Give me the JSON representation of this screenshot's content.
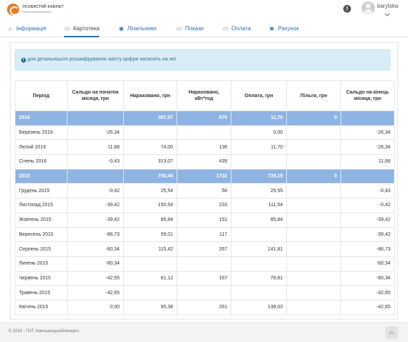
{
  "header": {
    "logo_title": "ОСОБИСТИЙ КАБІНЕТ",
    "logo_subtitle": "хмельницькобленерго",
    "username": "barytska"
  },
  "nav": {
    "tabs": [
      {
        "label": "Інформація",
        "icon": "home-icon",
        "glyph": "⌂"
      },
      {
        "label": "Картотека",
        "icon": "card-icon",
        "glyph": "▭"
      },
      {
        "label": "Лічильники",
        "icon": "meter-icon",
        "glyph": "◉"
      },
      {
        "label": "Покази",
        "icon": "readings-icon",
        "glyph": "▭"
      },
      {
        "label": "Оплата",
        "icon": "payment-icon",
        "glyph": "▭"
      },
      {
        "label": "Рахунок",
        "icon": "invoice-icon",
        "glyph": "◙"
      }
    ],
    "active_tab": "Картотека"
  },
  "alert": {
    "text": "для детальнішого розшифрування змісту цифри натисніть на неї"
  },
  "table": {
    "columns": [
      "Період",
      "Сальдо на початок місяця, грн",
      "Нараховано, грн",
      "Нараховано, кВт*год",
      "Оплата, грн",
      "Пільги, грн",
      "Сальдо на кінець місяця, грн"
    ],
    "rows": [
      {
        "type": "year",
        "cells": [
          "2016",
          "",
          "387,07",
          "575",
          "11,70",
          "0",
          ""
        ]
      },
      {
        "type": "month",
        "cells": [
          "Березень 2016",
          "-26,34",
          "",
          "",
          "0,00",
          "",
          "-26,34"
        ]
      },
      {
        "type": "month",
        "cells": [
          "Лютий 2016",
          "11,68",
          "74,00",
          "136",
          "11,70",
          "",
          "-26,34"
        ]
      },
      {
        "type": "month",
        "cells": [
          "Січень 2016",
          "-0,43",
          "313,07",
          "439",
          "",
          "",
          "11,68"
        ]
      },
      {
        "type": "year",
        "cells": [
          "2015",
          "",
          "750,46",
          "1722",
          "739,19",
          "0",
          ""
        ]
      },
      {
        "type": "month",
        "cells": [
          "Грудень 2015",
          "-0,42",
          "25,54",
          "56",
          "25,55",
          "",
          "-0,43"
        ]
      },
      {
        "type": "month",
        "cells": [
          "Листопад 2015",
          "-39,42",
          "150,54",
          "233",
          "111,54",
          "",
          "-0,42"
        ]
      },
      {
        "type": "month",
        "cells": [
          "Жовтень 2015",
          "-39,42",
          "85,84",
          "151",
          "85,84",
          "",
          "-39,42"
        ]
      },
      {
        "type": "month",
        "cells": [
          "Вересень 2015",
          "-86,73",
          "59,01",
          "117",
          "",
          "",
          "-39,42"
        ]
      },
      {
        "type": "month",
        "cells": [
          "Серпень 2015",
          "-60,34",
          "115,42",
          "267",
          "141,81",
          "",
          "-86,73"
        ]
      },
      {
        "type": "month",
        "cells": [
          "Липень 2015",
          "-60,34",
          "",
          "",
          "",
          "",
          "-60,34"
        ]
      },
      {
        "type": "month",
        "cells": [
          "Червень 2015",
          "-42,65",
          "61,12",
          "167",
          "78,81",
          "",
          "-60,34"
        ]
      },
      {
        "type": "month",
        "cells": [
          "Травень 2015",
          "-42,65",
          "",
          "",
          "",
          "",
          "-42,65"
        ]
      },
      {
        "type": "month",
        "cells": [
          "Квітень 2015",
          "0,00",
          "95,38",
          "261",
          "138,03",
          "",
          "-42,65"
        ]
      }
    ]
  },
  "footer": {
    "text": "© 2016 - ПАТ Хмельницькобленерго"
  },
  "colors": {
    "accent": "#2b6fb0",
    "year_row": "#8eb4e3",
    "alert_bg": "#d9edf7",
    "logo": "#f07a22"
  }
}
